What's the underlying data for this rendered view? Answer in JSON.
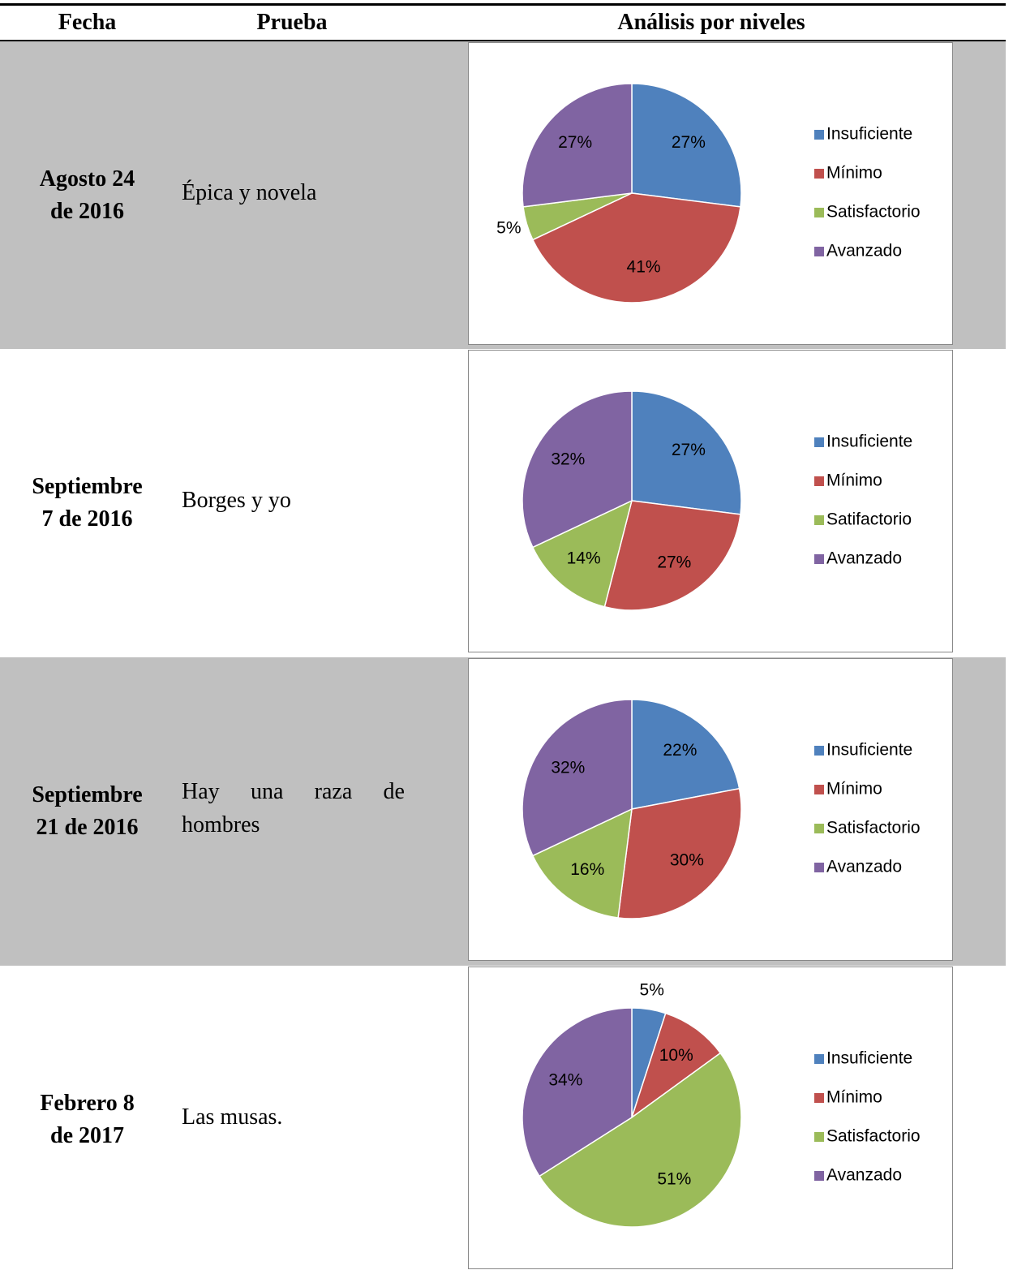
{
  "table": {
    "header": [
      "Fecha",
      "Prueba",
      "Análisis por niveles"
    ],
    "rows": [
      {
        "fecha": [
          "Agosto 24",
          "de 2016"
        ],
        "prueba": "Épica y novela",
        "shaded": true,
        "chart": {
          "type": "pie",
          "categories": [
            "Insuficiente",
            "Mínimo",
            "Satisfactorio",
            "Avanzado"
          ],
          "values": [
            27,
            41,
            5,
            27
          ],
          "value_labels": [
            "27%",
            "41%",
            "5%",
            "27%"
          ],
          "colors": [
            "#4f81bd",
            "#c0504d",
            "#9bbb59",
            "#8064a2"
          ],
          "legend": "right"
        }
      },
      {
        "fecha": [
          "Septiembre",
          "7 de 2016"
        ],
        "prueba": "Borges y yo",
        "shaded": false,
        "chart": {
          "type": "pie",
          "categories": [
            "Insuficiente",
            "Mínimo",
            "Satifactorio",
            "Avanzado"
          ],
          "values": [
            27,
            27,
            14,
            32
          ],
          "value_labels": [
            "27%",
            "27%",
            "14%",
            "32%"
          ],
          "colors": [
            "#4f81bd",
            "#c0504d",
            "#9bbb59",
            "#8064a2"
          ],
          "legend": "right"
        }
      },
      {
        "fecha": [
          "Septiembre",
          "21 de 2016"
        ],
        "prueba": "Hay una raza de hombres",
        "shaded": true,
        "chart": {
          "type": "pie",
          "categories": [
            "Insuficiente",
            "Mínimo",
            "Satisfactorio",
            "Avanzado"
          ],
          "values": [
            22,
            30,
            16,
            32
          ],
          "value_labels": [
            "22%",
            "30%",
            "16%",
            "32%"
          ],
          "colors": [
            "#4f81bd",
            "#c0504d",
            "#9bbb59",
            "#8064a2"
          ],
          "legend": "right"
        }
      },
      {
        "fecha": [
          "Febrero 8",
          "de 2017"
        ],
        "prueba": "Las musas.",
        "shaded": false,
        "chart": {
          "type": "pie",
          "categories": [
            "Insuficiente",
            "Mínimo",
            "Satisfactorio",
            "Avanzado"
          ],
          "values": [
            5,
            10,
            51,
            34
          ],
          "value_labels": [
            "5%",
            "10%",
            "51%",
            "34%"
          ],
          "colors": [
            "#4f81bd",
            "#c0504d",
            "#9bbb59",
            "#8064a2"
          ],
          "legend": "right"
        }
      }
    ]
  }
}
